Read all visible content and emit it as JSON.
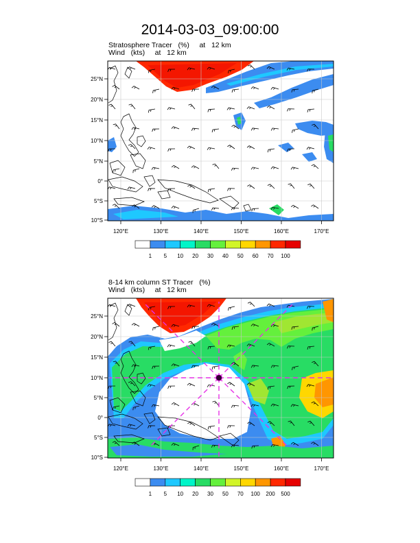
{
  "page_title": "2014-03-03_09:00:00",
  "panel1": {
    "subtitle1": "Stratosphere Tracer   (%)     at   12 km",
    "subtitle2": "Wind   (kts)     at   12 km",
    "colorbar_labels": [
      "1",
      "5",
      "10",
      "20",
      "30",
      "40",
      "50",
      "60",
      "70",
      "100"
    ]
  },
  "panel2": {
    "subtitle1": "8-14 km column ST Tracer   (%)",
    "subtitle2": "Wind   (kts)     at   12 km",
    "colorbar_labels": [
      "1",
      "5",
      "10",
      "20",
      "30",
      "50",
      "70",
      "100",
      "200",
      "500"
    ]
  },
  "lat_labels": [
    "25°N",
    "20°N",
    "15°N",
    "10°N",
    "5°N",
    "0°",
    "5°S",
    "10°S"
  ],
  "lon_labels": [
    "120°E",
    "130°E",
    "140°E",
    "150°E",
    "160°E",
    "170°E"
  ],
  "colors": {
    "cb": [
      "#ffffff",
      "#3c8cf0",
      "#1ec8ff",
      "#00f5c8",
      "#28dc64",
      "#64f03c",
      "#d2f528",
      "#ffd700",
      "#ff9600",
      "#ff2800",
      "#e60000"
    ],
    "blue": "#3c8cf0",
    "cyan": "#1ec8ff",
    "green": "#28dc64",
    "lime": "#a0e632",
    "orange": "#ff9600",
    "red": "#ff2800",
    "magenta": "#e632e6"
  }
}
